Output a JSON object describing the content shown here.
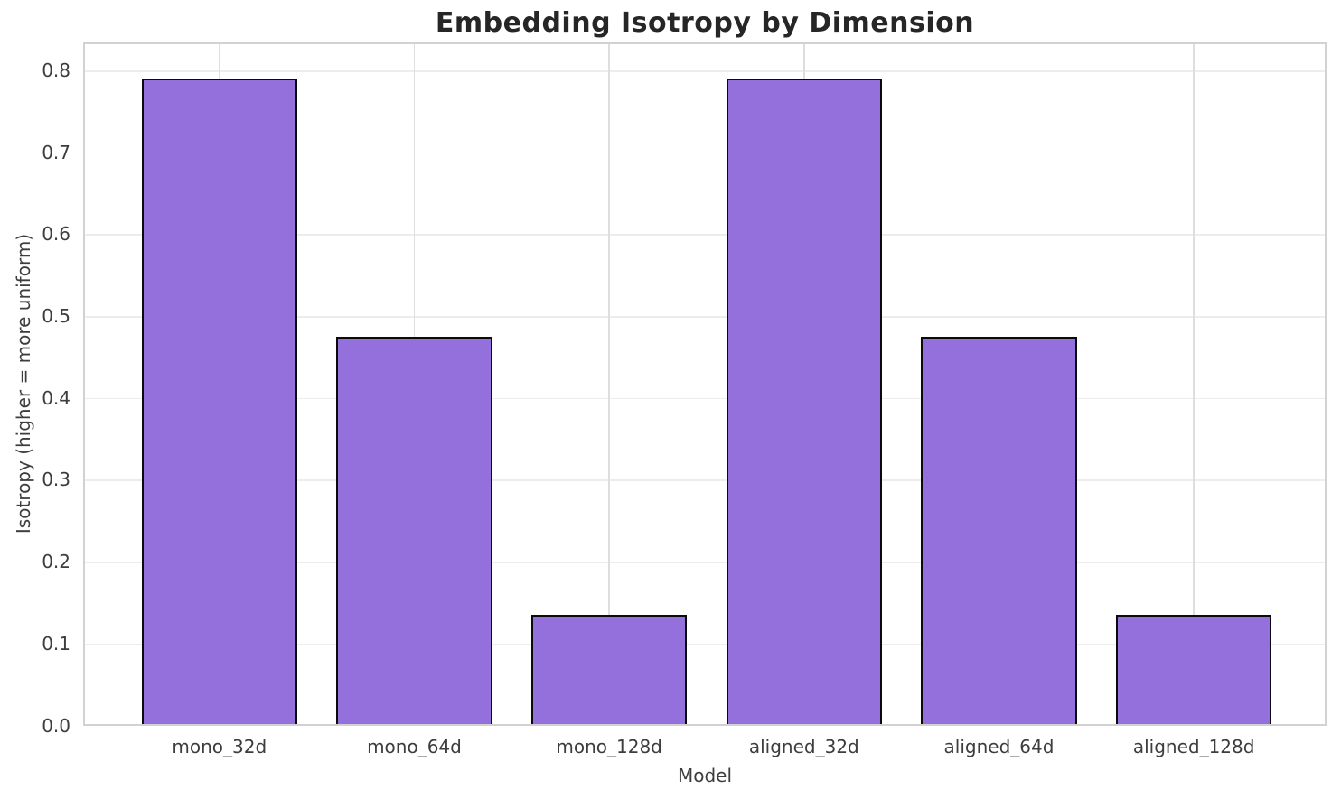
{
  "chart_data": {
    "type": "bar",
    "title": "Embedding Isotropy by Dimension",
    "xlabel": "Model",
    "ylabel": "Isotropy (higher = more uniform)",
    "categories": [
      "mono_32d",
      "mono_64d",
      "mono_128d",
      "aligned_32d",
      "aligned_64d",
      "aligned_128d"
    ],
    "values": [
      0.79,
      0.475,
      0.135,
      0.79,
      0.475,
      0.135
    ],
    "ylim": [
      0.0,
      0.835
    ],
    "yticks": [
      0.0,
      0.1,
      0.2,
      0.3,
      0.4,
      0.5,
      0.6,
      0.7,
      0.8
    ],
    "ytick_labels": [
      "0.0",
      "0.1",
      "0.2",
      "0.3",
      "0.4",
      "0.5",
      "0.6",
      "0.7",
      "0.8"
    ],
    "grid": true,
    "legend": null,
    "bar_face_color": "#9370db",
    "bar_edge_color": "#0a0a0a",
    "spine_color": "#d2d2d2",
    "horizontal_grid_color": "#ededed",
    "vertical_grid_color": "#dedede",
    "title_color": "#262626",
    "tick_label_color": "#3d3d3d"
  }
}
